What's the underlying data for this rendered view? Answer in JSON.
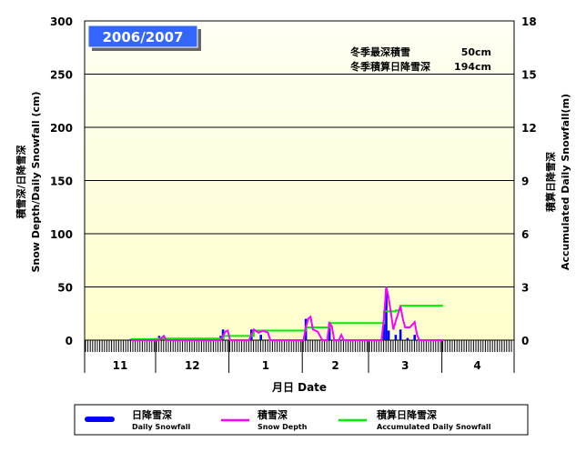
{
  "season_label": "2006/2007",
  "summary": {
    "max_depth_label": "冬季最深積雪",
    "max_depth_value": "50cm",
    "total_label": "冬季積算日降雪深",
    "total_value": "194cm"
  },
  "colors": {
    "snowfall": "#0000ff",
    "depth": "#ff00ff",
    "accumulated": "#00ee00",
    "title_box": "#3366ff"
  },
  "chart_data": {
    "type": "bar+line",
    "ylabel_jp": "積雪深/日降雪深",
    "ylabel": "Snow Depth/Daily Snowfall (cm)",
    "y2label_jp": "積算日降雪深",
    "y2label": "Accumulated Daily Snowfall(m)",
    "xlabel": "月日  Date",
    "ylim": [
      0,
      300
    ],
    "y2lim": [
      0,
      18
    ],
    "yticks": [
      0,
      50,
      100,
      150,
      200,
      250,
      300
    ],
    "y2ticks": [
      0,
      3,
      6,
      9,
      12,
      15,
      18
    ],
    "grid": true,
    "months": [
      "11",
      "12",
      "1",
      "2",
      "3",
      "4"
    ],
    "series": [
      {
        "name": "日降雪深 Daily Snowfall",
        "type": "bar",
        "unit": "cm",
        "points": [
          [
            "11-20",
            1
          ],
          [
            "12-02",
            4
          ],
          [
            "12-28",
            4
          ],
          [
            "12-29",
            10
          ],
          [
            "01-10",
            10
          ],
          [
            "01-14",
            5
          ],
          [
            "02-02",
            20
          ],
          [
            "02-12",
            17
          ],
          [
            "03-07",
            15
          ],
          [
            "03-08",
            48
          ],
          [
            "03-09",
            9
          ],
          [
            "03-12",
            5
          ],
          [
            "03-14",
            10
          ],
          [
            "03-17",
            2
          ],
          [
            "03-20",
            5
          ]
        ]
      },
      {
        "name": "積雪深 Snow Depth",
        "type": "line",
        "unit": "cm",
        "points": [
          [
            "11-20",
            0
          ],
          [
            "12-02",
            0
          ],
          [
            "12-04",
            4
          ],
          [
            "12-05",
            0
          ],
          [
            "12-28",
            0
          ],
          [
            "12-30",
            8
          ],
          [
            "12-31",
            9
          ],
          [
            "01-01",
            0
          ],
          [
            "01-09",
            0
          ],
          [
            "01-11",
            10
          ],
          [
            "01-13",
            7
          ],
          [
            "01-15",
            9
          ],
          [
            "01-17",
            7
          ],
          [
            "01-18",
            0
          ],
          [
            "02-01",
            0
          ],
          [
            "02-02",
            12
          ],
          [
            "02-03",
            20
          ],
          [
            "02-04",
            22
          ],
          [
            "02-05",
            10
          ],
          [
            "02-07",
            8
          ],
          [
            "02-09",
            0
          ],
          [
            "02-11",
            0
          ],
          [
            "02-12",
            16
          ],
          [
            "02-13",
            13
          ],
          [
            "02-14",
            0
          ],
          [
            "02-16",
            0
          ],
          [
            "02-17",
            5
          ],
          [
            "02-18",
            0
          ],
          [
            "03-06",
            0
          ],
          [
            "03-07",
            20
          ],
          [
            "03-08",
            50
          ],
          [
            "03-09",
            40
          ],
          [
            "03-10",
            25
          ],
          [
            "03-11",
            10
          ],
          [
            "03-12",
            18
          ],
          [
            "03-13",
            25
          ],
          [
            "03-14",
            32
          ],
          [
            "03-15",
            20
          ],
          [
            "03-16",
            12
          ],
          [
            "03-18",
            12
          ],
          [
            "03-20",
            17
          ],
          [
            "03-21",
            5
          ],
          [
            "03-22",
            0
          ],
          [
            "04-01",
            0
          ]
        ]
      },
      {
        "name": "積算日降雪深 Accumulated Daily Snowfall",
        "type": "step",
        "unit": "m",
        "points": [
          [
            "11-20",
            0.06
          ],
          [
            "12-02",
            0.09
          ],
          [
            "12-29",
            0.24
          ],
          [
            "01-11",
            0.54
          ],
          [
            "02-02",
            0.72
          ],
          [
            "02-12",
            0.96
          ],
          [
            "03-07",
            1.62
          ],
          [
            "03-12",
            1.68
          ],
          [
            "03-14",
            1.94
          ],
          [
            "04-01",
            1.94
          ]
        ]
      }
    ]
  },
  "legend": [
    {
      "jp": "日降雪深",
      "en": "Daily Snowfall"
    },
    {
      "jp": "積雪深",
      "en": "Snow Depth"
    },
    {
      "jp": "積算日降雪深",
      "en": "Accumulated Daily Snowfall"
    }
  ]
}
